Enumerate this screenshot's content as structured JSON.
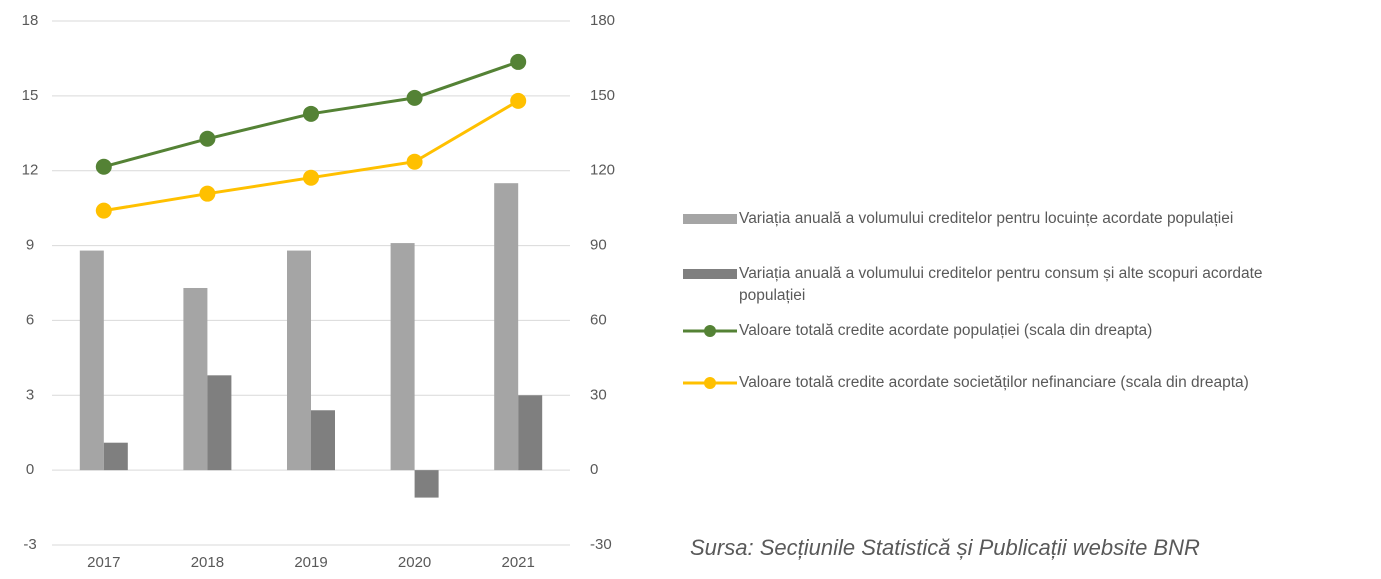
{
  "chart_data": {
    "type": "bar_line",
    "categories": [
      "2017",
      "2018",
      "2019",
      "2020",
      "2021"
    ],
    "series": [
      {
        "name": "Variația anuală a volumului creditelor pentru locuințe acordate populației",
        "type": "bar",
        "color": "#a5a5a5",
        "values": [
          8.8,
          7.3,
          8.8,
          9.1,
          11.5
        ]
      },
      {
        "name": "Variația anuală a volumului creditelor pentru consum și alte scopuri acordate populației",
        "type": "bar",
        "color": "#7f7f7f",
        "values": [
          1.1,
          3.8,
          2.4,
          -1.1,
          3.0
        ]
      },
      {
        "name": "Valoare totală credite acordate populației (scala din dreapta)",
        "type": "line",
        "axis": "y2",
        "color": "#548235",
        "values": [
          121.6,
          132.8,
          142.8,
          149.2,
          163.6
        ]
      },
      {
        "name": "Valoare totală credite acordate societăților nefinanciare (scala din dreapta)",
        "type": "line",
        "axis": "y2",
        "color": "#ffc000",
        "values": [
          104,
          110.8,
          117.2,
          123.6,
          148
        ]
      }
    ],
    "ylim": [
      -3,
      18
    ],
    "yticks": [
      -3,
      0,
      3,
      6,
      9,
      12,
      15,
      18
    ],
    "y2lim": [
      -30,
      180
    ],
    "y2ticks": [
      -30,
      0,
      30,
      60,
      90,
      120,
      150,
      180
    ],
    "grid": true,
    "legend": "right",
    "source": "Sursa: Secțiunile Statistică și Publicații website BNR"
  }
}
